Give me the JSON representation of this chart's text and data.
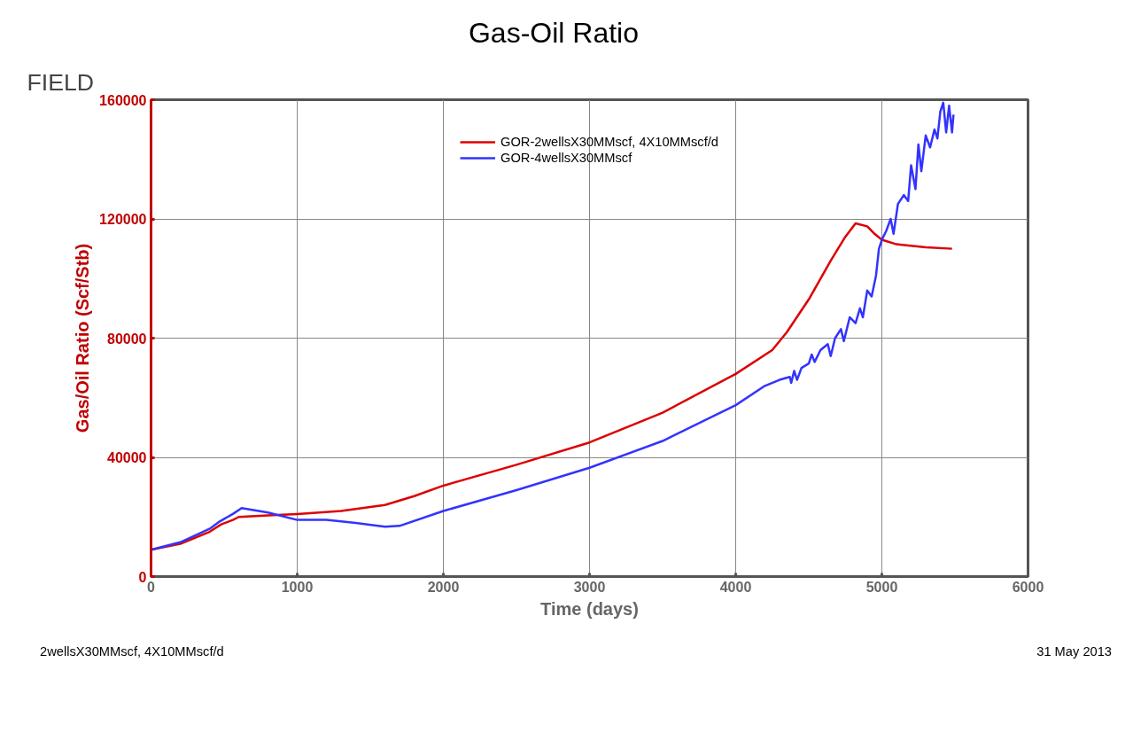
{
  "chart_data": {
    "type": "line",
    "title": "Gas-Oil Ratio",
    "subtitle": "FIELD",
    "xlabel": "Time (days)",
    "ylabel": "Gas/Oil Ratio (Scf/Stb)",
    "annotations": [
      "2wellsX30MMscf, 4X10MMscf/d",
      "31 May 2013"
    ],
    "xlim": [
      0,
      6000
    ],
    "xticks": [
      0,
      1000,
      2000,
      3000,
      4000,
      5000,
      6000
    ],
    "ylim": [
      0,
      160000
    ],
    "yticks": [
      0,
      40000,
      80000,
      120000,
      160000
    ],
    "grid": true,
    "legend": "top",
    "marker": "none",
    "line_style": "solid",
    "series": [
      {
        "name": "GOR-2wellsX30MMscf, 4X10MMscf/d",
        "color": "#dd0000",
        "x": [
          0,
          200,
          400,
          480,
          560,
          600,
          800,
          1000,
          1300,
          1600,
          1800,
          2000,
          2500,
          3000,
          3500,
          4000,
          4250,
          4350,
          4500,
          4650,
          4750,
          4820,
          4900,
          4950,
          5000,
          5100,
          5300,
          5480
        ],
        "values": [
          9000,
          11000,
          15000,
          17500,
          19000,
          20000,
          20500,
          21000,
          22000,
          24000,
          27000,
          30500,
          37500,
          45000,
          55000,
          68000,
          76000,
          82000,
          93000,
          106000,
          114000,
          118500,
          117500,
          115000,
          113000,
          111500,
          110500,
          110000
        ]
      },
      {
        "name": "GOR-4wellsX30MMscf",
        "color": "#3333ff",
        "x": [
          0,
          200,
          400,
          470,
          560,
          620,
          800,
          1000,
          1200,
          1400,
          1600,
          1700,
          2000,
          2500,
          3000,
          3500,
          4000,
          4200,
          4300,
          4370,
          4380,
          4400,
          4420,
          4450,
          4500,
          4520,
          4540,
          4580,
          4630,
          4650,
          4680,
          4720,
          4740,
          4780,
          4820,
          4850,
          4870,
          4900,
          4930,
          4960,
          4980,
          5000,
          5030,
          5060,
          5080,
          5110,
          5150,
          5180,
          5200,
          5230,
          5250,
          5270,
          5300,
          5330,
          5360,
          5380,
          5400,
          5420,
          5440,
          5460,
          5480,
          5490
        ],
        "values": [
          9000,
          11500,
          16000,
          18500,
          21000,
          23000,
          21500,
          19000,
          19000,
          18000,
          16700,
          17000,
          22000,
          29000,
          36500,
          45500,
          57500,
          64000,
          66000,
          67000,
          65000,
          69000,
          66000,
          70000,
          71500,
          74500,
          72000,
          76000,
          78000,
          74000,
          80000,
          83000,
          79000,
          87000,
          85000,
          90000,
          87000,
          96000,
          94000,
          101000,
          110000,
          113000,
          116000,
          120000,
          115000,
          125000,
          128000,
          126000,
          138000,
          130000,
          145000,
          136000,
          148000,
          144000,
          150000,
          147000,
          156000,
          159000,
          149000,
          158000,
          149000,
          155000
        ]
      }
    ]
  }
}
